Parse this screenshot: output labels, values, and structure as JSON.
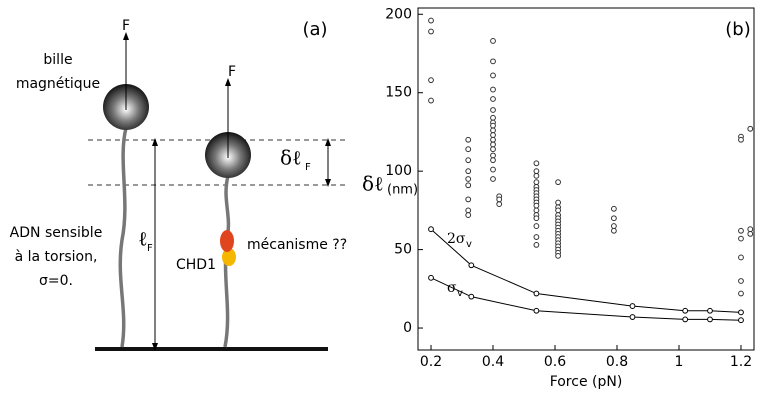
{
  "diagram": {
    "label": "(a)",
    "force_1": "F",
    "force_2": "F",
    "bead_1": "bille",
    "bead_2": "magnétique",
    "dna_1": "ADN sensible",
    "dna_2": "à la torsion,",
    "dna_3": "σ=0.",
    "length": {
      "symbol": "ℓ",
      "sub": "F"
    },
    "delta_length": {
      "symbol": "δℓ",
      "sub": "F"
    },
    "protein": "CHD1",
    "mechanism": "mécanisme ??"
  },
  "chart_data": {
    "type": "scatter",
    "label": "(b)",
    "xlabel": "Force (pN)",
    "ylabel": "δℓ",
    "ylabel_sub": "(nm)",
    "xlim": [
      0.158,
      1.242
    ],
    "ylim": [
      -14,
      204
    ],
    "xticks": [
      0.2,
      0.4,
      0.6,
      0.8,
      1,
      1.2
    ],
    "yticks": [
      0,
      50,
      100,
      150,
      200
    ],
    "series": [
      {
        "color": "#333333",
        "x": [
          0.2,
          0.2,
          0.2,
          0.2,
          0.32,
          0.32,
          0.32,
          0.32,
          0.32,
          0.32,
          0.32,
          0.32,
          0.32,
          0.4,
          0.4,
          0.4,
          0.4,
          0.4,
          0.4,
          0.4,
          0.4,
          0.4,
          0.4,
          0.4,
          0.4,
          0.4,
          0.4,
          0.4,
          0.4,
          0.4,
          0.4,
          0.42,
          0.42,
          0.42,
          0.54,
          0.54,
          0.54,
          0.54,
          0.54,
          0.54,
          0.54,
          0.54,
          0.54,
          0.54,
          0.54,
          0.54,
          0.54,
          0.54,
          0.54,
          0.54,
          0.54,
          0.61,
          0.61,
          0.61,
          0.61,
          0.61,
          0.61,
          0.61,
          0.61,
          0.61,
          0.61,
          0.61,
          0.61,
          0.61,
          0.61,
          0.61,
          0.61,
          0.61,
          0.61,
          0.79,
          0.79,
          0.79,
          0.79,
          1.2,
          1.2,
          1.2,
          1.2,
          1.2,
          1.2,
          1.2,
          1.23,
          1.23,
          1.23
        ],
        "values": [
          196,
          189,
          158,
          145,
          120,
          114,
          107,
          100,
          95,
          91,
          82,
          75,
          72,
          183,
          170,
          161,
          152,
          146,
          139,
          134,
          131,
          129,
          126,
          123,
          120,
          117,
          114,
          110,
          107,
          101,
          95,
          84,
          79,
          82,
          105,
          100,
          97,
          93,
          90,
          88,
          86,
          84,
          82,
          80,
          78,
          75,
          72,
          70,
          65,
          58,
          53,
          93,
          80,
          77,
          75,
          72,
          70,
          68,
          66,
          64,
          62,
          60,
          58,
          56,
          54,
          52,
          50,
          48,
          46,
          76,
          70,
          65,
          62,
          122,
          120,
          62,
          57,
          45,
          30,
          22,
          127,
          63,
          60
        ]
      },
      {
        "name": "2σ",
        "name_sub": "v",
        "color": "#000000",
        "line": true,
        "x": [
          0.2,
          0.33,
          0.54,
          0.85,
          1.02,
          1.1,
          1.2
        ],
        "values": [
          63,
          40,
          22,
          14,
          11,
          11,
          10
        ]
      },
      {
        "name": "σ",
        "name_sub": "v",
        "color": "#000000",
        "line": true,
        "x": [
          0.2,
          0.33,
          0.54,
          0.85,
          1.02,
          1.1,
          1.2
        ],
        "values": [
          32,
          20,
          11,
          7,
          5.5,
          5.5,
          5
        ]
      }
    ]
  }
}
